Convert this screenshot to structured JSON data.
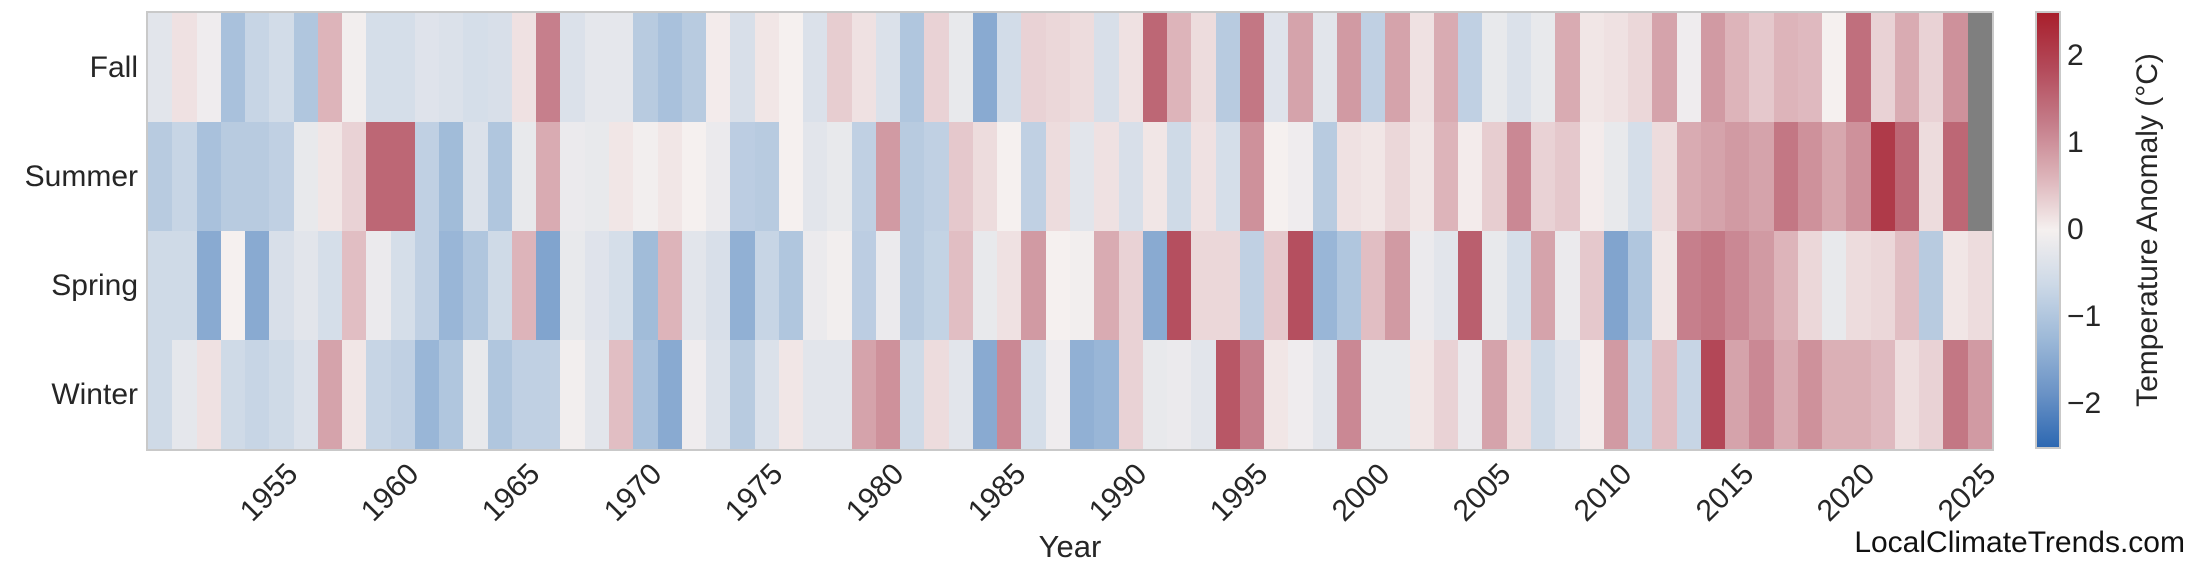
{
  "watermark": "LocalClimateTrends.com",
  "colors": {
    "background": "#ffffff",
    "text": "#262626",
    "spine": "#c9c9c9",
    "missing_cell": "#7f7f7f"
  },
  "chart_data": {
    "type": "heatmap",
    "title": "",
    "xlabel": "Year",
    "ylabel": "",
    "colorbar_label": "Temperature Anomaly (°C)",
    "colorbar_tick_labels": [
      "2",
      "1",
      "0",
      "−1",
      "−2"
    ],
    "colorbar_tick_values": [
      2,
      1,
      0,
      -1,
      -2
    ],
    "vmin": -2.5,
    "vmax": 2.5,
    "grid": false,
    "legend_position": "right-colorbar",
    "years_start": 1950,
    "years_end": 2025,
    "x_tick_labels": [
      "1955",
      "1960",
      "1965",
      "1970",
      "1975",
      "1980",
      "1985",
      "1990",
      "1995",
      "2000",
      "2005",
      "2010",
      "2015",
      "2020",
      "2025"
    ],
    "rows": [
      "Fall",
      "Summer",
      "Spring",
      "Winter"
    ],
    "missing_value_note": "gray cells = no data (Fall 2025, Summer 2025)",
    "colormap": {
      "missing": "#7f7f7f",
      "anchors": [
        [
          -2.5,
          "#2d68b2"
        ],
        [
          -1.875,
          "#6b93c6"
        ],
        [
          -1.25,
          "#9db9d8"
        ],
        [
          -0.625,
          "#cdd9e7"
        ],
        [
          0.0,
          "#f5f0ef"
        ],
        [
          0.625,
          "#dcb2b8"
        ],
        [
          1.25,
          "#c47b88"
        ],
        [
          1.875,
          "#b34959"
        ],
        [
          2.5,
          "#a81f2c"
        ]
      ]
    },
    "series": [
      {
        "name": "Fall",
        "values": [
          -0.3,
          0.15,
          -0.1,
          -1.1,
          -0.7,
          -0.55,
          -1.0,
          0.6,
          -0.05,
          -0.5,
          -0.5,
          -0.35,
          -0.4,
          -0.5,
          -0.45,
          0.15,
          1.2,
          -0.4,
          -0.25,
          -0.25,
          -0.9,
          -1.1,
          -0.9,
          0.05,
          -0.45,
          0.1,
          0.0,
          -0.4,
          0.35,
          0.15,
          -0.4,
          -1.0,
          0.3,
          -0.2,
          -1.5,
          -0.55,
          0.3,
          0.25,
          0.2,
          -0.45,
          0.15,
          1.5,
          0.6,
          0.2,
          -0.9,
          1.3,
          -0.35,
          0.8,
          -0.3,
          0.9,
          -0.8,
          0.8,
          0.15,
          0.7,
          -0.8,
          -0.2,
          -0.4,
          -0.2,
          0.7,
          0.1,
          0.15,
          0.25,
          0.8,
          -0.1,
          0.9,
          0.6,
          0.4,
          0.6,
          0.55,
          0.0,
          1.4,
          0.3,
          0.7,
          0.3,
          1.0,
          null
        ]
      },
      {
        "name": "Summer",
        "values": [
          -0.9,
          -0.7,
          -1.1,
          -0.9,
          -0.9,
          -0.8,
          -0.2,
          0.1,
          0.3,
          1.5,
          1.5,
          -0.8,
          -1.2,
          -0.4,
          -1.0,
          -0.2,
          0.7,
          -0.15,
          -0.2,
          0.1,
          -0.05,
          0.1,
          0.0,
          -0.15,
          -0.85,
          -0.9,
          0.0,
          -0.3,
          -0.2,
          -0.8,
          0.9,
          -0.9,
          -0.8,
          0.4,
          0.2,
          0.0,
          -0.8,
          0.2,
          -0.3,
          0.15,
          -0.45,
          0.1,
          -0.6,
          0.15,
          -0.5,
          1.0,
          0.0,
          -0.1,
          -0.9,
          0.15,
          0.1,
          0.25,
          0.1,
          0.6,
          0.05,
          0.35,
          1.1,
          0.3,
          0.4,
          0.05,
          -0.2,
          -0.5,
          0.2,
          0.7,
          0.8,
          0.9,
          0.8,
          1.3,
          1.0,
          0.75,
          1.0,
          2.1,
          1.5,
          0.2,
          1.5,
          null
        ]
      },
      {
        "name": "Spring",
        "values": [
          -0.6,
          -0.6,
          -1.5,
          0.0,
          -1.5,
          -0.45,
          -0.3,
          -0.5,
          0.5,
          -0.15,
          -0.5,
          -0.8,
          -1.3,
          -1.0,
          -0.6,
          0.6,
          -1.6,
          -0.2,
          -0.35,
          -0.5,
          -1.2,
          0.6,
          -0.3,
          -0.45,
          -1.4,
          -0.7,
          -1.0,
          -0.15,
          -0.05,
          -0.85,
          -0.15,
          -0.9,
          -0.75,
          0.5,
          -0.2,
          0.15,
          0.9,
          0.0,
          -0.05,
          0.7,
          0.3,
          -1.5,
          1.8,
          0.25,
          0.25,
          -0.8,
          0.4,
          1.8,
          -1.3,
          -1.0,
          0.5,
          0.9,
          -0.15,
          -0.3,
          1.6,
          -0.2,
          -0.5,
          0.8,
          -0.15,
          0.4,
          -1.6,
          -1.0,
          0.1,
          1.2,
          1.3,
          1.1,
          0.9,
          0.6,
          0.25,
          -0.2,
          0.2,
          0.25,
          0.5,
          -0.9,
          0.1,
          0.2
        ]
      },
      {
        "name": "Winter",
        "values": [
          -0.6,
          -0.25,
          0.15,
          -0.6,
          -0.7,
          -0.6,
          -0.4,
          0.8,
          0.1,
          -0.7,
          -0.8,
          -1.3,
          -1.0,
          -0.2,
          -1.0,
          -0.8,
          -0.8,
          -0.05,
          -0.3,
          0.5,
          -1.1,
          -1.5,
          -0.1,
          -0.4,
          -0.9,
          -0.4,
          0.1,
          -0.3,
          -0.3,
          0.8,
          1.0,
          -0.6,
          0.2,
          -0.3,
          -1.5,
          1.1,
          -0.5,
          -0.1,
          -1.4,
          -1.3,
          0.3,
          -0.2,
          -0.15,
          -0.3,
          1.7,
          1.2,
          0.1,
          -0.1,
          -0.3,
          1.1,
          -0.2,
          -0.2,
          0.1,
          0.3,
          -0.15,
          0.8,
          0.2,
          -0.6,
          -0.35,
          0.05,
          0.9,
          -0.7,
          0.5,
          -0.7,
          1.9,
          0.8,
          1.1,
          0.7,
          1.0,
          0.65,
          0.65,
          0.55,
          0.18,
          0.3,
          1.3,
          0.9
        ]
      }
    ]
  }
}
